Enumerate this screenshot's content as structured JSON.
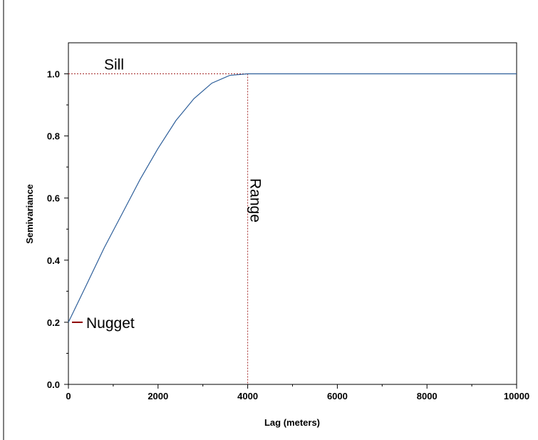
{
  "chart_data": {
    "type": "line",
    "title": "",
    "xlabel": "Lag (meters)",
    "ylabel": "Semivariance",
    "xlim": [
      0,
      10000
    ],
    "ylim": [
      0,
      1.1
    ],
    "x_ticks": [
      0,
      2000,
      4000,
      6000,
      8000,
      10000
    ],
    "y_ticks": [
      0.0,
      0.2,
      0.4,
      0.6,
      0.8,
      1.0
    ],
    "x_tick_labels": [
      "0",
      "2000",
      "4000",
      "6000",
      "8000",
      "10000"
    ],
    "y_tick_labels": [
      "0.0",
      "0.2",
      "0.4",
      "0.6",
      "0.8",
      "1.0"
    ],
    "grid": false,
    "series": [
      {
        "x": [
          0,
          400,
          800,
          1200,
          1600,
          2000,
          2400,
          2800,
          3200,
          3600,
          4000,
          6000,
          8000,
          10000
        ],
        "y": [
          0.2,
          0.32,
          0.44,
          0.55,
          0.66,
          0.76,
          0.85,
          0.92,
          0.97,
          0.995,
          1.0,
          1.0,
          1.0,
          1.0
        ],
        "color": "#2e5f9a"
      }
    ],
    "annotations": {
      "sill": {
        "label": "Sill",
        "y": 1.0
      },
      "range": {
        "label": "Range",
        "x": 4000
      },
      "nugget": {
        "label": "Nugget",
        "y": 0.2
      }
    },
    "colors": {
      "reference_line": "#a52a2a",
      "nugget_mark": "#8b0000",
      "curve": "#2e5f9a"
    }
  }
}
